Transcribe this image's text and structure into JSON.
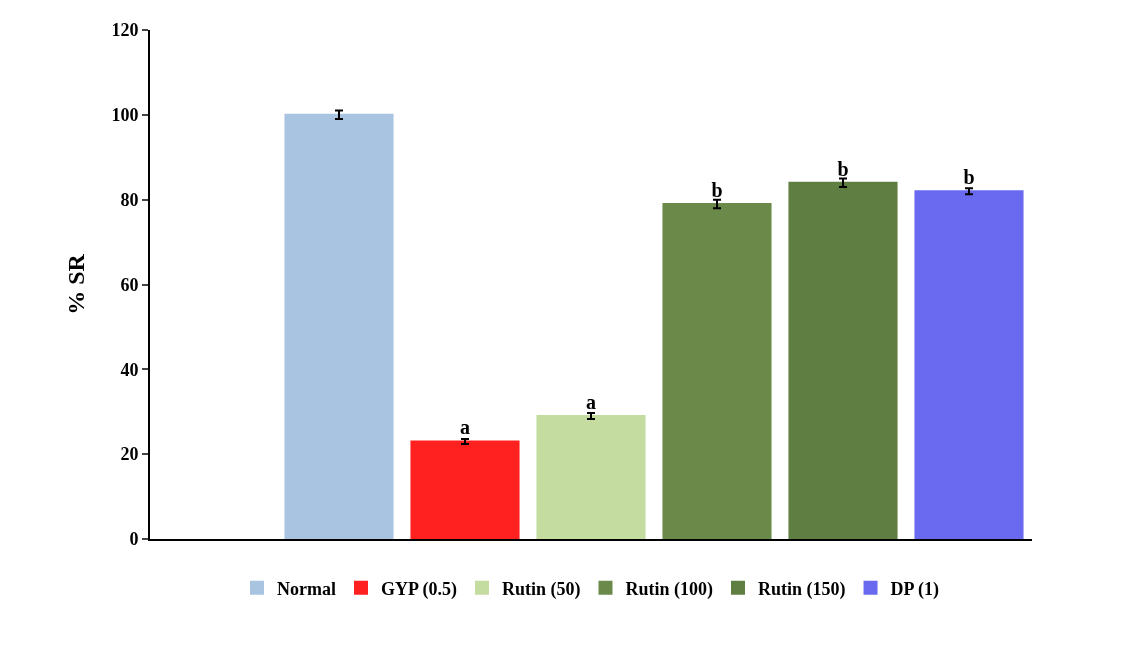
{
  "chart_data": {
    "type": "bar",
    "ylabel": "% SR",
    "categories": [
      null,
      null,
      null,
      null,
      null,
      null,
      null
    ],
    "ylim": [
      0,
      120
    ],
    "yticks": [
      0,
      20,
      40,
      60,
      80,
      100,
      120
    ],
    "grid": false,
    "legend": "bottom",
    "series": [
      {
        "name": "Normal",
        "color": "#a9c4e0",
        "values": [
          null,
          100,
          null,
          null,
          null,
          null,
          null
        ],
        "errors": [
          null,
          1,
          null,
          null,
          null,
          null,
          null
        ]
      },
      {
        "name": "GYP (0.5)",
        "color": "#ff2020",
        "values": [
          null,
          null,
          23,
          null,
          null,
          null,
          null
        ],
        "errors": [
          null,
          null,
          0.6,
          null,
          null,
          null,
          null
        ],
        "value_labels": [
          null,
          null,
          "a",
          null,
          null,
          null,
          null
        ]
      },
      {
        "name": "Rutin (50)",
        "color": "#c5dca0",
        "values": [
          null,
          null,
          null,
          29,
          null,
          null,
          null
        ],
        "errors": [
          null,
          null,
          null,
          0.7,
          null,
          null,
          null
        ],
        "value_labels": [
          null,
          null,
          null,
          "a",
          null,
          null,
          null
        ]
      },
      {
        "name": "Rutin (100)",
        "color": "#6b8a4a",
        "values": [
          null,
          null,
          null,
          null,
          79,
          null,
          null
        ],
        "errors": [
          null,
          null,
          null,
          null,
          1,
          null,
          null
        ],
        "value_labels": [
          null,
          null,
          null,
          null,
          "b",
          null,
          null
        ]
      },
      {
        "name": "Rutin (150)",
        "color": "#5f7f42",
        "values": [
          null,
          null,
          null,
          null,
          null,
          84,
          null
        ],
        "errors": [
          null,
          null,
          null,
          null,
          null,
          1,
          null
        ],
        "value_labels": [
          null,
          null,
          null,
          null,
          null,
          "b",
          null
        ]
      },
      {
        "name": "DP (1)",
        "color": "#6a6af0",
        "values": [
          null,
          null,
          null,
          null,
          null,
          null,
          82
        ],
        "errors": [
          null,
          null,
          null,
          null,
          null,
          null,
          0.7
        ],
        "value_labels": [
          null,
          null,
          null,
          null,
          null,
          null,
          "b"
        ]
      }
    ]
  }
}
